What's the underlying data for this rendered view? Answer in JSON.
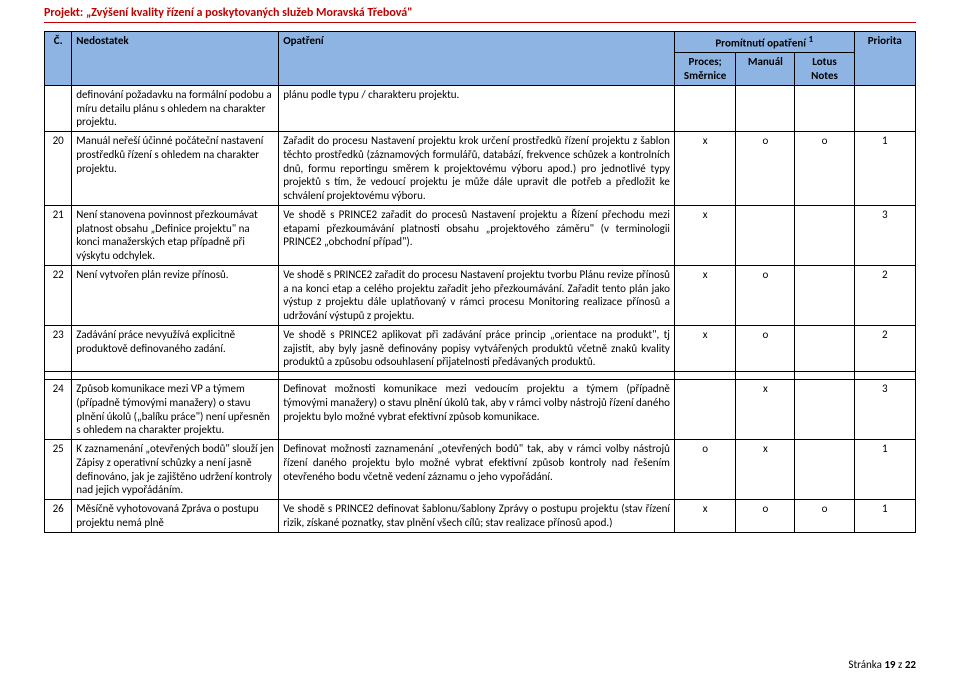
{
  "project_header": "Projekt: „Zvýšení kvality řízení a poskytovaných služeb Moravská Třebová\"",
  "columns": {
    "c": "Č.",
    "nedostatek": "Nedostatek",
    "opatreni": "Opatření",
    "promitnuti": "Promítnutí opatření",
    "promitnuti_sup": "1",
    "proces": "Proces; Směrnice",
    "manual": "Manuál",
    "lotus": "Lotus Notes",
    "priorita": "Priorita"
  },
  "rows": [
    {
      "num": "",
      "ned": "definování požadavku na formální podobu a míru detailu plánu s ohledem na charakter projektu.",
      "opa": "plánu podle typu / charakteru projektu.",
      "proc": "",
      "man": "",
      "lotus": "",
      "prio": ""
    },
    {
      "num": "20",
      "ned": "Manuál neřeší účinné počáteční nastavení prostředků řízení s ohledem na charakter projektu.",
      "opa": "Zařadit do procesu Nastavení projektu krok určení prostředků řízení projektu z šablon těchto prostředků (záznamových formulářů, databází, frekvence schůzek a kontrolních dnů, formu reportingu směrem k projektovému výboru apod.) pro jednotlivé typy projektů s tím, že vedoucí projektu je může dále upravit dle potřeb a předložit ke schválení projektovému výboru.",
      "proc": "x",
      "man": "o",
      "lotus": "o",
      "prio": "1"
    },
    {
      "num": "21",
      "ned": "Není stanovena povinnost přezkoumávat platnost obsahu „Definice projektu\" na konci manažerských etap případně při výskytu odchylek.",
      "opa": "Ve shodě s PRINCE2 zařadit do procesů Nastavení projektu a Řízení přechodu mezi etapami přezkoumávání platnosti obsahu „projektového záměru\" (v terminologii PRINCE2 „obchodní případ\").",
      "proc": "x",
      "man": "",
      "lotus": "",
      "prio": "3"
    },
    {
      "num": "22",
      "ned": "Není vytvořen plán revize přínosů.",
      "opa": "Ve shodě s PRINCE2 zařadit do procesu Nastavení projektu tvorbu Plánu revize přínosů a na konci etap a celého projektu zařadit jeho přezkoumávání. Zařadit tento plán jako výstup z projektu dále uplatňovaný v rámci procesu Monitoring realizace přínosů a udržování výstupů z projektu.",
      "proc": "x",
      "man": "o",
      "lotus": "",
      "prio": "2"
    },
    {
      "num": "23",
      "ned": "Zadávání práce nevyužívá explicitně produktově definovaného zadání.",
      "opa": "Ve shodě s PRINCE2 aplikovat při zadávání práce princip „orientace na produkt\", tj zajistit, aby byly jasně definovány popisy vytvářených produktů včetně znaků kvality produktů a způsobu odsouhlasení přijatelnosti předávaných produktů.",
      "proc": "x",
      "man": "o",
      "lotus": "",
      "prio": "2"
    },
    {
      "num": "24",
      "ned": "Způsob komunikace mezi VP a týmem (případně týmovými manažery) o stavu plnění úkolů („balíku práce\") není upřesněn s ohledem na charakter projektu.",
      "opa": "Definovat možnosti komunikace mezi vedoucím projektu a týmem (případně týmovými manažery) o stavu plnění úkolů tak, aby v rámci volby nástrojů řízení daného projektu bylo možné vybrat efektivní způsob komunikace.",
      "proc": "",
      "man": "x",
      "lotus": "",
      "prio": "3"
    },
    {
      "num": "25",
      "ned": "K zaznamenání „otevřených bodů\" slouží jen Zápisy z operativní schůzky a není jasně definováno, jak je zajištěno udržení kontroly nad jejich vypořádáním.",
      "opa": "Definovat možnosti zaznamenání „otevřených bodů\" tak, aby v rámci volby nástrojů řízení daného projektu bylo možné vybrat efektivní způsob kontroly nad řešením otevřeného bodu včetně vedení záznamu o jeho vypořádání.",
      "proc": "o",
      "man": "x",
      "lotus": "",
      "prio": "1"
    },
    {
      "num": "26",
      "ned": "Měsíčně vyhotovovaná Zpráva o postupu projektu nemá plně",
      "opa": "Ve shodě s PRINCE2 definovat šablonu/šablony Zprávy o postupu projektu (stav řízení rizik, získané poznatky, stav plnění všech cílů; stav realizace přínosů apod.)",
      "proc": "x",
      "man": "o",
      "lotus": "o",
      "prio": "1"
    }
  ],
  "footer": {
    "label": "Stránka ",
    "page": "19",
    "of_label": " z ",
    "total": "22"
  },
  "colors": {
    "header_bg": "#8db4e3",
    "project_text": "#c00000",
    "border": "#000000",
    "background": "#ffffff"
  }
}
